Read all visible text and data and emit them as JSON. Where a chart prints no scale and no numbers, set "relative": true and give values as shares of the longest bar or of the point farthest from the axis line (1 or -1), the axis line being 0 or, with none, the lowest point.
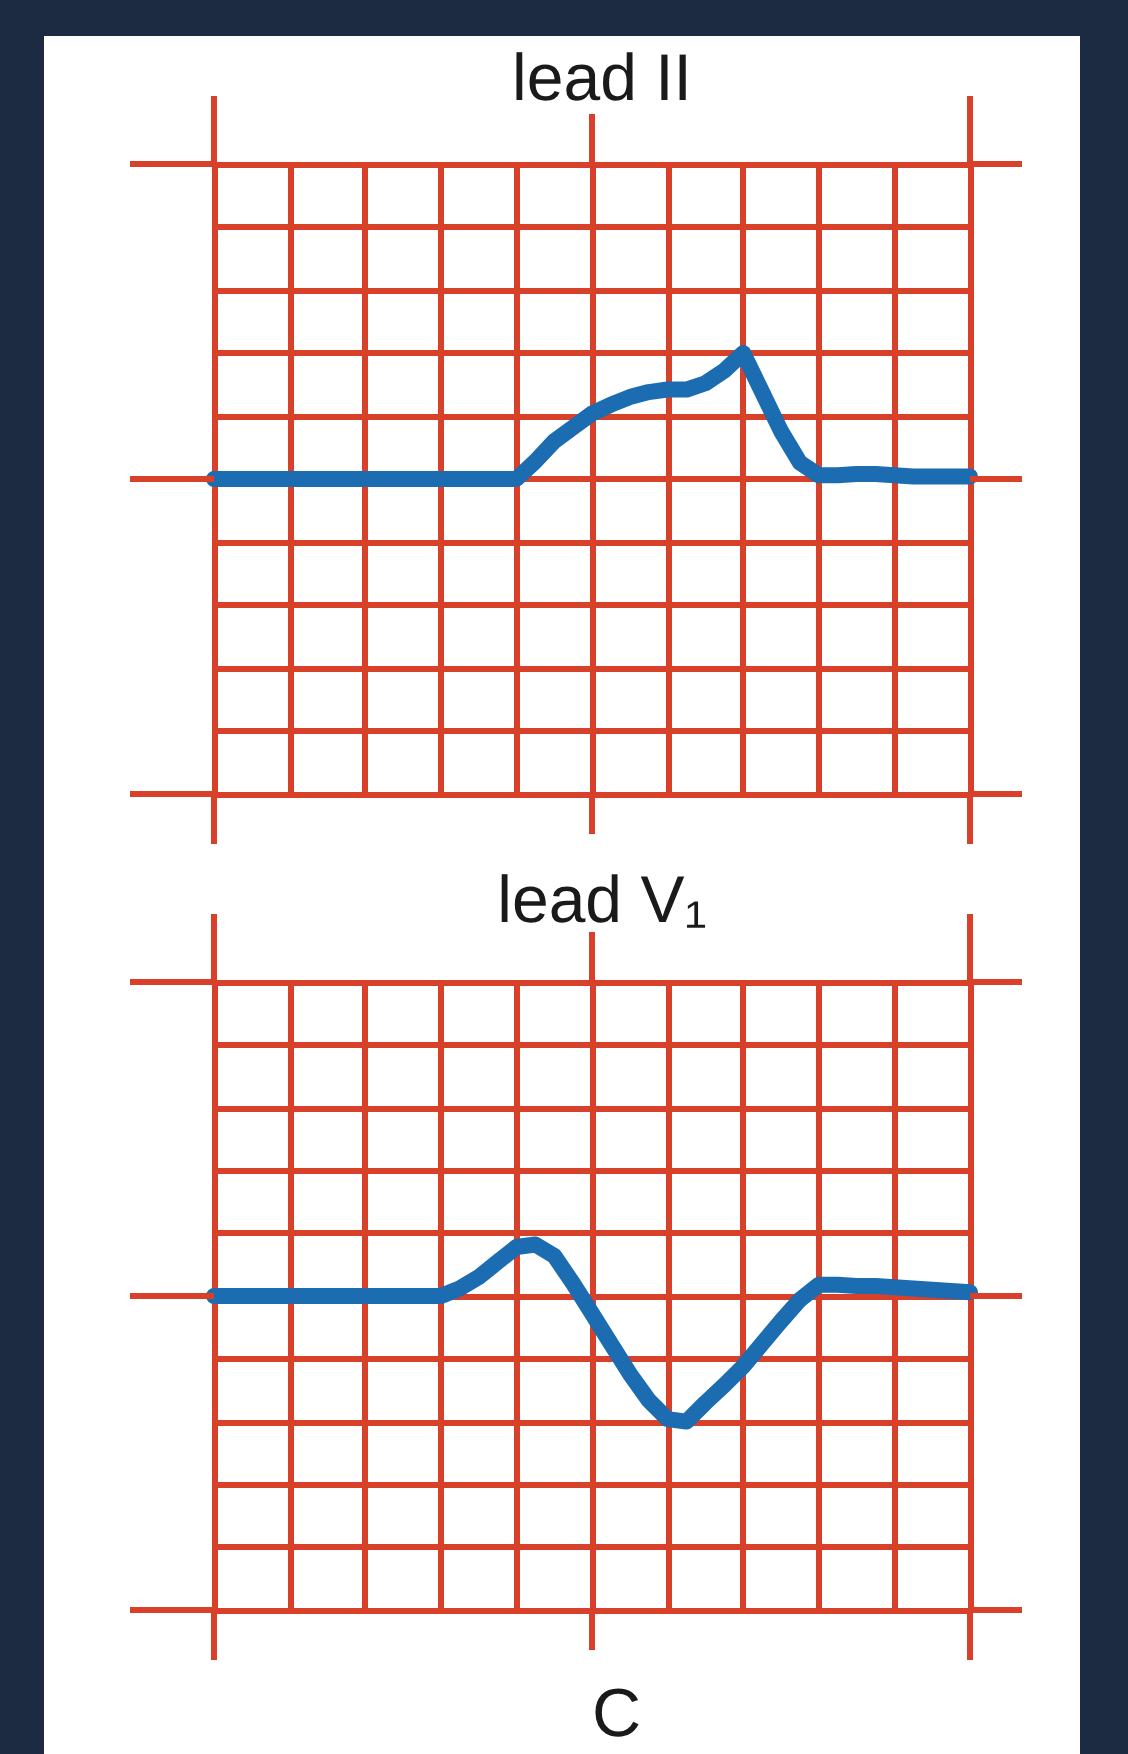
{
  "chart_data": [
    {
      "type": "line",
      "title": "lead II",
      "categories": [
        null,
        null,
        null,
        null,
        null,
        null,
        null,
        null,
        null,
        null,
        null,
        null,
        null,
        null,
        null,
        null,
        null,
        null,
        null,
        null,
        null,
        null,
        null,
        null,
        null,
        null,
        null,
        null,
        null,
        null,
        null,
        null,
        null,
        null,
        null,
        null,
        null,
        null,
        null,
        null,
        null
      ],
      "values": [
        0,
        0,
        0,
        0,
        0,
        0,
        0,
        0,
        0,
        0,
        0,
        0,
        0,
        0,
        0,
        0,
        0,
        0.14,
        0.3,
        0.41,
        0.52,
        0.59,
        0.65,
        0.69,
        0.71,
        0.71,
        0.76,
        0.86,
        1,
        0.69,
        0.38,
        0.13,
        0.03,
        0.03,
        0.04,
        0.04,
        0.03,
        0.02,
        0.02,
        0.02,
        0.02
      ],
      "color": "#1b6cb0",
      "relative": true,
      "grid": true,
      "marker": "none"
    },
    {
      "type": "line",
      "title": "lead V₁",
      "categories": [
        null,
        null,
        null,
        null,
        null,
        null,
        null,
        null,
        null,
        null,
        null,
        null,
        null,
        null,
        null,
        null,
        null,
        null,
        null,
        null,
        null,
        null,
        null,
        null,
        null,
        null,
        null,
        null,
        null,
        null,
        null,
        null,
        null,
        null,
        null,
        null,
        null,
        null,
        null,
        null,
        null
      ],
      "values": [
        0,
        0,
        0,
        0,
        0,
        0,
        0,
        0,
        0,
        0,
        0,
        0,
        0,
        0.06,
        0.15,
        0.27,
        0.39,
        0.41,
        0.32,
        0.1,
        -0.14,
        -0.38,
        -0.62,
        -0.83,
        -0.98,
        -1,
        -0.85,
        -0.71,
        -0.56,
        -0.38,
        -0.2,
        -0.03,
        0.09,
        0.09,
        0.08,
        0.08,
        0.07,
        0.06,
        0.05,
        0.04,
        0.03
      ],
      "color": "#1b6cb0",
      "relative": true,
      "grid": true,
      "marker": "none",
      "annotations": [
        "C"
      ]
    }
  ]
}
